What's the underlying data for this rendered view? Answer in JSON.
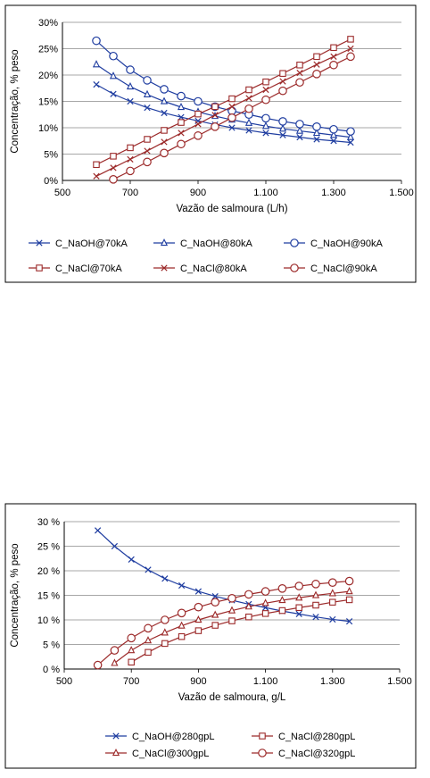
{
  "chart_data": [
    {
      "type": "line",
      "title": "",
      "xlabel": "Vazão de salmoura (L/h)",
      "ylabel": "Concentração, % peso",
      "xlim": [
        500,
        1500
      ],
      "ylim": [
        0,
        30
      ],
      "x_ticks": [
        "500",
        "700",
        "900",
        "1.100",
        "1.300",
        "1.500"
      ],
      "y_ticks": [
        "0%",
        "5%",
        "10%",
        "15%",
        "20%",
        "25%",
        "30%"
      ],
      "grid": "horizontal",
      "legend_position": "bottom",
      "x": [
        600,
        650,
        700,
        750,
        800,
        850,
        900,
        950,
        1000,
        1050,
        1100,
        1150,
        1200,
        1250,
        1300,
        1350
      ],
      "series": [
        {
          "name": "C_NaOH@70kA",
          "color": "#1f3da0",
          "marker": "x",
          "values": [
            18.2,
            16.4,
            15.0,
            13.8,
            12.8,
            12.0,
            11.3,
            10.6,
            10.0,
            9.5,
            9.0,
            8.6,
            8.2,
            7.8,
            7.5,
            7.2
          ]
        },
        {
          "name": "C_NaOH@80kA",
          "color": "#1f3da0",
          "marker": "triangle",
          "values": [
            22.0,
            19.8,
            17.8,
            16.3,
            15.0,
            13.9,
            13.0,
            12.2,
            11.5,
            10.9,
            10.3,
            9.8,
            9.4,
            9.0,
            8.6,
            8.2
          ]
        },
        {
          "name": "C_NaOH@90kA",
          "color": "#1f3da0",
          "marker": "circle",
          "values": [
            26.5,
            23.6,
            21.0,
            19.0,
            17.3,
            16.0,
            15.0,
            14.0,
            13.2,
            12.5,
            11.8,
            11.2,
            10.7,
            10.2,
            9.7,
            9.3
          ]
        },
        {
          "name": "C_NaCl@70kA",
          "color": "#9c2a2a",
          "marker": "square",
          "values": [
            3.0,
            4.6,
            6.2,
            7.8,
            9.5,
            11.0,
            12.6,
            14.0,
            15.5,
            17.2,
            18.7,
            20.3,
            21.9,
            23.5,
            25.2,
            26.8
          ]
        },
        {
          "name": "C_NaCl@80kA",
          "color": "#9c2a2a",
          "marker": "x",
          "values": [
            0.8,
            2.4,
            4.0,
            5.6,
            7.3,
            9.0,
            10.7,
            12.4,
            14.0,
            15.6,
            17.2,
            18.8,
            20.4,
            22.0,
            23.5,
            25.0
          ]
        },
        {
          "name": "C_NaCl@90kA",
          "color": "#9c2a2a",
          "marker": "circle",
          "x": [
            650,
            700,
            750,
            800,
            850,
            900,
            950,
            1000,
            1050,
            1100,
            1150,
            1200,
            1250,
            1300,
            1350
          ],
          "values": [
            0.2,
            1.8,
            3.5,
            5.2,
            6.9,
            8.5,
            10.2,
            11.9,
            13.6,
            15.3,
            17.0,
            18.6,
            20.2,
            21.9,
            23.5
          ]
        }
      ]
    },
    {
      "type": "line",
      "title": "",
      "xlabel": "Vazão de salmoura, g/L",
      "ylabel": "Concentração, % peso",
      "xlim": [
        500,
        1500
      ],
      "ylim": [
        0,
        30
      ],
      "x_ticks": [
        "500",
        "700",
        "900",
        "1.100",
        "1.300",
        "1.500"
      ],
      "y_ticks": [
        "0 %",
        "5 %",
        "10 %",
        "15 %",
        "20 %",
        "25 %",
        "30 %"
      ],
      "grid": "horizontal",
      "legend_position": "bottom",
      "series": [
        {
          "name": "C_NaOH@280gpL",
          "color": "#1f3da0",
          "marker": "x",
          "x": [
            600,
            650,
            700,
            750,
            800,
            850,
            900,
            950,
            1000,
            1050,
            1100,
            1150,
            1200,
            1250,
            1300,
            1350
          ],
          "values": [
            28.2,
            25.0,
            22.3,
            20.2,
            18.4,
            17.0,
            15.8,
            14.8,
            14.0,
            13.2,
            12.5,
            11.8,
            11.2,
            10.6,
            10.1,
            9.7
          ]
        },
        {
          "name": "C_NaCl@280gpL",
          "color": "#9c2a2a",
          "marker": "square",
          "x": [
            700,
            750,
            800,
            850,
            900,
            950,
            1000,
            1050,
            1100,
            1150,
            1200,
            1250,
            1300,
            1350
          ],
          "values": [
            1.4,
            3.4,
            5.2,
            6.6,
            7.8,
            8.9,
            9.8,
            10.6,
            11.3,
            11.9,
            12.5,
            13.0,
            13.6,
            14.1
          ]
        },
        {
          "name": "C_NaCl@300gpL",
          "color": "#9c2a2a",
          "marker": "triangle",
          "x": [
            650,
            700,
            750,
            800,
            850,
            900,
            950,
            1000,
            1050,
            1100,
            1150,
            1200,
            1250,
            1300,
            1350
          ],
          "values": [
            1.2,
            3.8,
            5.8,
            7.4,
            8.8,
            10.0,
            11.0,
            11.9,
            12.7,
            13.4,
            14.0,
            14.5,
            15.0,
            15.4,
            15.8
          ]
        },
        {
          "name": "C_NaCl@320gpL",
          "color": "#9c2a2a",
          "marker": "circle",
          "x": [
            600,
            650,
            700,
            750,
            800,
            850,
            900,
            950,
            1000,
            1050,
            1100,
            1150,
            1200,
            1250,
            1300,
            1350
          ],
          "values": [
            0.8,
            3.8,
            6.3,
            8.3,
            10.0,
            11.4,
            12.6,
            13.6,
            14.4,
            15.2,
            15.8,
            16.4,
            16.9,
            17.3,
            17.6,
            17.9
          ]
        }
      ]
    }
  ]
}
